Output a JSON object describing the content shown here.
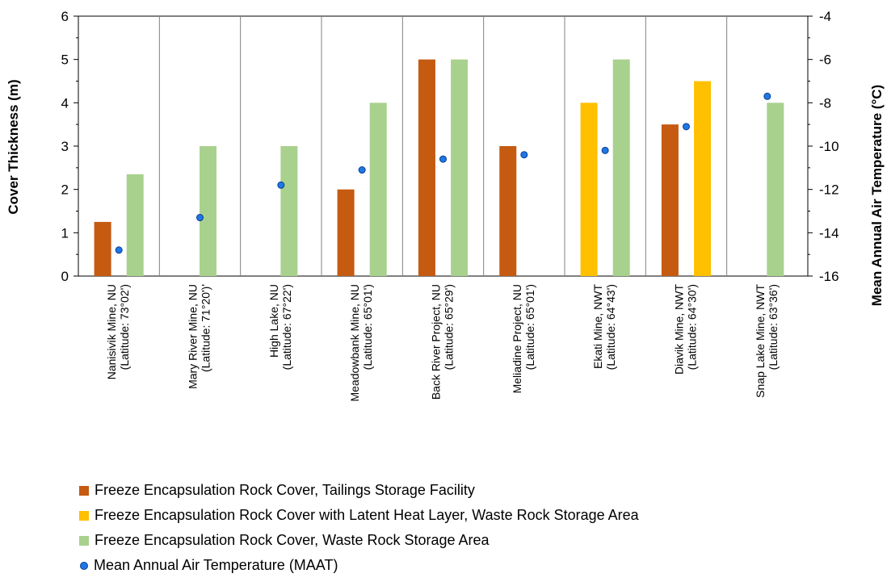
{
  "chart_data": {
    "type": "bar",
    "categories": [
      [
        "Nanisivik Mine, NU",
        "(Latitude: 73°02')"
      ],
      [
        "Mary River Mine, NU",
        "(Latitude: 71°20')'"
      ],
      [
        "High Lake, NU",
        "(Latitude: 67°22')"
      ],
      [
        "Meadowbank Mine, NU",
        "(Latitude: 65°01')"
      ],
      [
        "Back River Project, NU",
        "(Latitude: 65°29')"
      ],
      [
        "Meliadine Project, NU",
        "(Latitude: 65°01')"
      ],
      [
        "Ekati Mine, NWT",
        "(Latitude: 64°43')"
      ],
      [
        "Diavik Mine, NWT",
        "(Latitude: 64°30')"
      ],
      [
        "Snap Lake Mine, NWT",
        "(Latitude: 63°36')"
      ]
    ],
    "series": [
      {
        "name": "Freeze Encapsulation Rock Cover, Tailings Storage Facility",
        "color": "#c55a11",
        "axis": "left",
        "values": [
          1.25,
          null,
          null,
          2.0,
          5.0,
          3.0,
          null,
          3.5,
          null
        ]
      },
      {
        "name": "Freeze Encapsulation Rock Cover with Latent Heat Layer, Waste Rock Storage Area",
        "color": "#ffc000",
        "axis": "left",
        "values": [
          null,
          null,
          null,
          null,
          null,
          null,
          4.0,
          4.5,
          null
        ]
      },
      {
        "name": "Freeze Encapsulation Rock Cover, Waste Rock Storage Area",
        "color": "#a9d18e",
        "axis": "left",
        "values": [
          2.35,
          3.0,
          3.0,
          4.0,
          5.0,
          null,
          5.0,
          null,
          4.0
        ]
      },
      {
        "name": "Mean Annual Air Temperature (MAAT)",
        "type": "scatter",
        "color": "#1f77e6",
        "axis": "right",
        "values": [
          -14.8,
          -13.3,
          -11.8,
          -11.1,
          -10.6,
          -10.4,
          -10.2,
          -9.1,
          -7.7
        ]
      }
    ],
    "ylabel": "Cover Thickness (m)",
    "ylim": [
      0,
      6
    ],
    "yticks": [
      "0",
      "1",
      "2",
      "3",
      "4",
      "5",
      "6"
    ],
    "y2label": "Mean Annual Air Temperature (°C)",
    "y2lim": [
      -16,
      -4
    ],
    "y2ticks": [
      "-16",
      "-14",
      "-12",
      "-10",
      "-8",
      "-6",
      "-4"
    ],
    "grid": "vertical category separators",
    "legend_position": "bottom"
  }
}
